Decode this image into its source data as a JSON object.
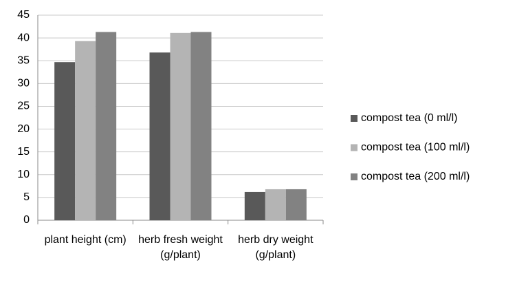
{
  "chart_data": {
    "type": "bar",
    "categories": [
      "plant height (cm)",
      "herb fresh weight (g/plant)",
      "herb dry weight (g/plant)"
    ],
    "series": [
      {
        "name": "compost tea (0 ml/l)",
        "color": "#595959",
        "values": [
          34.7,
          36.8,
          6.2
        ]
      },
      {
        "name": "compost tea (100 ml/l)",
        "color": "#b4b4b4",
        "values": [
          39.3,
          41.1,
          6.8
        ]
      },
      {
        "name": "compost tea (200 ml/l)",
        "color": "#828282",
        "values": [
          41.3,
          41.3,
          6.8
        ]
      }
    ],
    "ylim": [
      0,
      45
    ],
    "yticks": [
      0,
      5,
      10,
      15,
      20,
      25,
      30,
      35,
      40,
      45
    ],
    "grid": true,
    "legend": "right"
  }
}
